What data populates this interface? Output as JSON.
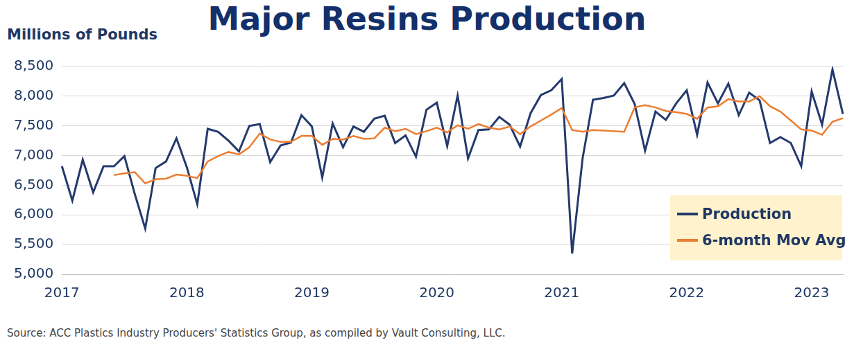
{
  "chart_data": {
    "type": "line",
    "title": "Major Resins Production",
    "y_label": "Millions of Pounds",
    "source": "Source:  ACC Plastics Industry Producers' Statistics Group, as compiled by Vault Consulting, LLC.",
    "categories": [
      "2017",
      null,
      null,
      null,
      null,
      null,
      null,
      null,
      null,
      null,
      null,
      null,
      "2018",
      null,
      null,
      null,
      null,
      null,
      null,
      null,
      null,
      null,
      null,
      null,
      "2019",
      null,
      null,
      null,
      null,
      null,
      null,
      null,
      null,
      null,
      null,
      null,
      "2020",
      null,
      null,
      null,
      null,
      null,
      null,
      null,
      null,
      null,
      null,
      null,
      "2021",
      null,
      null,
      null,
      null,
      null,
      null,
      null,
      null,
      null,
      null,
      null,
      "2022",
      null,
      null,
      null,
      null,
      null,
      null,
      null,
      null,
      null,
      null,
      null,
      "2023",
      null,
      null,
      null
    ],
    "series": [
      {
        "name": "Production",
        "color": "#243a6e",
        "values": [
          6820,
          6240,
          6930,
          6380,
          6820,
          6820,
          6990,
          6350,
          5770,
          6790,
          6900,
          7290,
          6800,
          6180,
          7450,
          7400,
          7250,
          7070,
          7500,
          7530,
          6890,
          7170,
          7220,
          7680,
          7490,
          6630,
          7540,
          7140,
          7490,
          7400,
          7620,
          7670,
          7210,
          7340,
          6980,
          7770,
          7890,
          7160,
          8010,
          6950,
          7430,
          7440,
          7650,
          7520,
          7150,
          7710,
          8020,
          8100,
          8290,
          5350,
          6950,
          7940,
          7970,
          8010,
          8220,
          7870,
          7080,
          7740,
          7600,
          7880,
          8100,
          7350,
          8230,
          7880,
          8210,
          7680,
          8060,
          7930,
          7210,
          7310,
          7210,
          6820,
          8080,
          7520,
          8450,
          7700
        ]
      },
      {
        "name": "6-month Mov Avg",
        "color": "#ed7d31",
        "values": [
          null,
          null,
          null,
          null,
          null,
          6670,
          6700,
          6720,
          6530,
          6600,
          6610,
          6680,
          6660,
          6620,
          6900,
          6990,
          7060,
          7020,
          7140,
          7370,
          7270,
          7230,
          7230,
          7330,
          7330,
          7180,
          7280,
          7270,
          7330,
          7280,
          7290,
          7470,
          7410,
          7450,
          7360,
          7410,
          7470,
          7390,
          7510,
          7450,
          7530,
          7470,
          7440,
          7490,
          7360,
          7490,
          7590,
          7690,
          7800,
          7430,
          7400,
          7430,
          7420,
          7410,
          7400,
          7810,
          7850,
          7810,
          7750,
          7730,
          7700,
          7620,
          7810,
          7830,
          7950,
          7910,
          7910,
          8000,
          7830,
          7740,
          7590,
          7440,
          7420,
          7350,
          7570,
          7630
        ]
      }
    ],
    "ylim": [
      5000,
      8500
    ],
    "yticks": [
      {
        "value": 5000,
        "label": "5,000"
      },
      {
        "value": 5500,
        "label": "5,500"
      },
      {
        "value": 6000,
        "label": "6,000"
      },
      {
        "value": 6500,
        "label": "6,500"
      },
      {
        "value": 7000,
        "label": "7,000"
      },
      {
        "value": 7500,
        "label": "7,500"
      },
      {
        "value": 8000,
        "label": "8,000"
      },
      {
        "value": 8500,
        "label": "8,500"
      }
    ],
    "grid": true,
    "legend": "lower right"
  }
}
